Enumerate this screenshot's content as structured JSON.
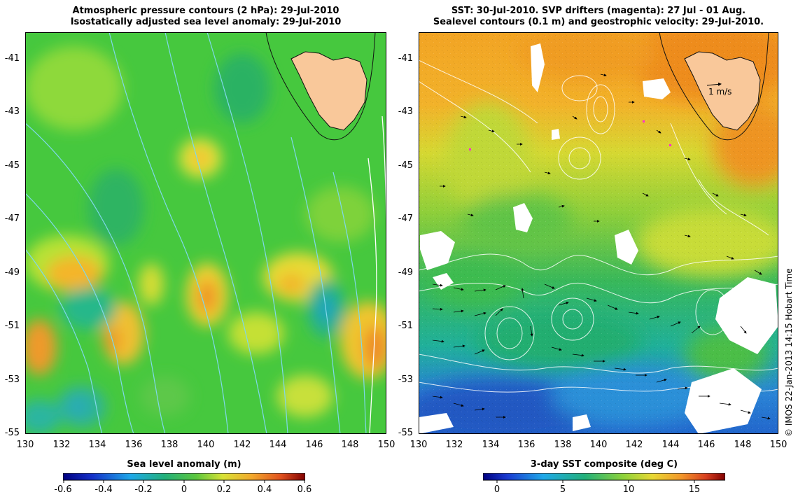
{
  "left_panel": {
    "title_line1": "Atmospheric pressure contours (2 hPa): 29-Jul-2010",
    "title_line2": "Isostatically adjusted sea level anomaly: 29-Jul-2010",
    "y_ticks": [
      "-41",
      "-43",
      "-45",
      "-47",
      "-49",
      "-51",
      "-53",
      "-55"
    ],
    "x_ticks": [
      "130",
      "132",
      "134",
      "136",
      "138",
      "140",
      "142",
      "144",
      "146",
      "148",
      "150"
    ],
    "colorbar_label": "Sea level anomaly (m)",
    "colorbar_ticks": [
      "-0.6",
      "-0.4",
      "-0.2",
      "0",
      "0.2",
      "0.4",
      "0.6"
    ]
  },
  "right_panel": {
    "title_line1": "SST: 30-Jul-2010. SVP drifters (magenta): 27 Jul - 01 Aug.",
    "title_line2": "Sealevel contours (0.1 m) and geostrophic velocity: 29-Jul-2010.",
    "y_ticks": [
      "-41",
      "-43",
      "-45",
      "-47",
      "-49",
      "-51",
      "-53",
      "-55"
    ],
    "x_ticks": [
      "130",
      "132",
      "134",
      "136",
      "138",
      "140",
      "142",
      "144",
      "146",
      "148",
      "150"
    ],
    "velocity_scale_label": "1 m/s",
    "colorbar_label": "3-day SST composite (deg C)",
    "colorbar_ticks": [
      "0",
      "5",
      "10",
      "15"
    ]
  },
  "credit": "© IMOS 22-Jan-2013 14:15 Hobart Time",
  "colors": {
    "land": "#f9c89a",
    "slm_green": "#3cc24a",
    "sst_orange": "#f5a623",
    "sst_blue": "#1f6fd6",
    "contour_cyan": "#7fd8ea",
    "contour_white": "#ffffff"
  }
}
